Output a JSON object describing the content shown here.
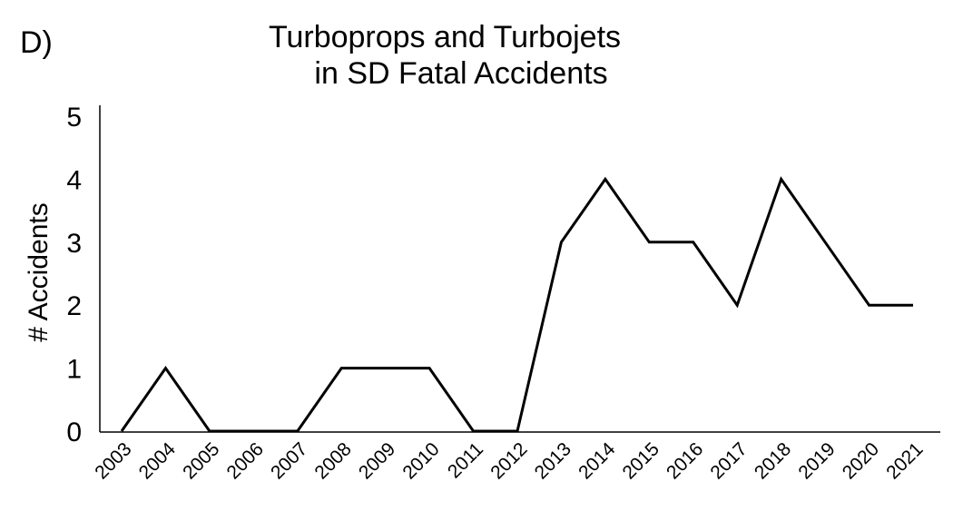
{
  "panel_label": "D)",
  "chart_data": {
    "type": "line",
    "title": [
      "Turboprops and Turbojets",
      "in SD Fatal Accidents"
    ],
    "xlabel": "",
    "ylabel": "# Accidents",
    "categories": [
      "2003",
      "2004",
      "2005",
      "2006",
      "2007",
      "2008",
      "2009",
      "2010",
      "2011",
      "2012",
      "2013",
      "2014",
      "2015",
      "2016",
      "2017",
      "2018",
      "2019",
      "2020",
      "2021"
    ],
    "values": [
      0,
      1,
      0,
      0,
      0,
      1,
      1,
      1,
      0,
      0,
      3,
      4,
      3,
      3,
      2,
      4,
      3,
      2,
      2
    ],
    "ylim": [
      0,
      5
    ],
    "yticks": [
      "0",
      "1",
      "2",
      "3",
      "4",
      "5"
    ],
    "grid": false,
    "line_color": "#000000"
  }
}
